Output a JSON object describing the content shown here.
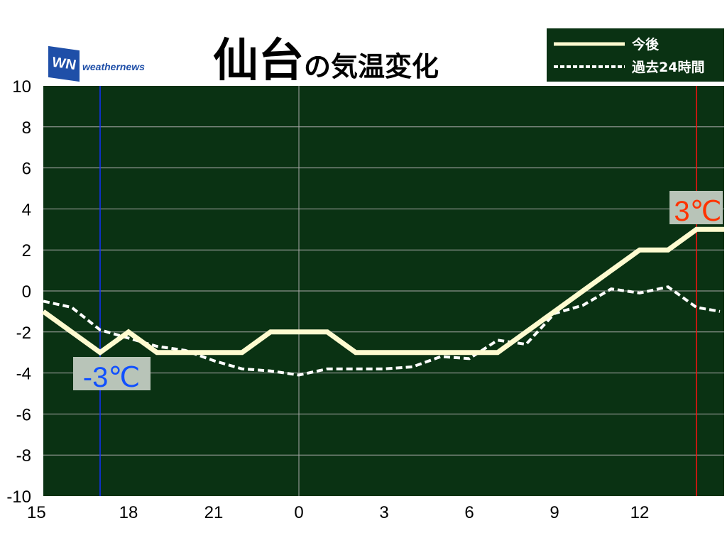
{
  "logo": {
    "mark": "WN",
    "text": "weathernews"
  },
  "title": {
    "city": "仙台",
    "rest": "の気温変化"
  },
  "chart_data": {
    "type": "line",
    "title": "仙台の気温変化",
    "ylim": [
      -10,
      10
    ],
    "yticks": [
      10,
      8,
      6,
      4,
      2,
      0,
      -2,
      -4,
      -6,
      -8,
      -10
    ],
    "xtick_labels": [
      "15",
      "18",
      "21",
      "0",
      "3",
      "6",
      "9",
      "12"
    ],
    "x_hours": [
      "15:00",
      "16:00",
      "17:00",
      "18:00",
      "19:00",
      "20:00",
      "21:00",
      "22:00",
      "23:00",
      "0:00",
      "1:00",
      "2:00",
      "3:00",
      "4:00",
      "5:00",
      "6:00",
      "7:00",
      "8:00",
      "9:00",
      "10:00",
      "11:00",
      "12:00",
      "13:00",
      "14:00",
      "15:00"
    ],
    "grid": true,
    "legend_position": "top-right",
    "series": [
      {
        "name": "今後",
        "style": "solid",
        "color": "#fffbd0",
        "values": [
          -1,
          -2,
          -3,
          -2,
          -3,
          -3,
          -3,
          -3,
          -2,
          -2,
          -2,
          -3,
          -3,
          -3,
          -3,
          -3,
          -3,
          -2,
          -1,
          0,
          1,
          2,
          2,
          3,
          3
        ]
      },
      {
        "name": "過去24時間",
        "style": "dashed",
        "color": "#ffffff",
        "values": [
          -0.5,
          -0.8,
          -1.9,
          -2.3,
          -2.7,
          -2.9,
          -3.4,
          -3.8,
          -3.9,
          -4.1,
          -3.8,
          -3.8,
          -3.8,
          -3.7,
          -3.2,
          -3.3,
          -2.4,
          -2.6,
          -1.1,
          -0.7,
          0.1,
          -0.1,
          0.2,
          -0.8,
          -1.0
        ]
      }
    ],
    "annotations": [
      {
        "text": "-3℃",
        "time": "17:00",
        "value": -3,
        "color": "#1050ff"
      },
      {
        "text": "3℃",
        "time": "14:00",
        "value": 3,
        "color": "#ff3300"
      }
    ],
    "plot_background": "#0a3213"
  }
}
